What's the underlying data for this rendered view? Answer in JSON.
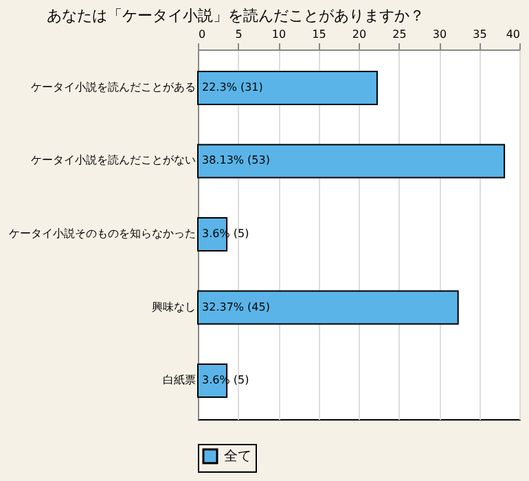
{
  "chart_data": {
    "type": "bar",
    "orientation": "horizontal",
    "title": "あなたは「ケータイ小説」を読んだことがありますか？",
    "categories": [
      "ケータイ小説を読んだことがある",
      "ケータイ小説を読んだことがない",
      "ケータイ小説そのものを知らなかった",
      "興味なし",
      "白紙票"
    ],
    "series": [
      {
        "name": "全て",
        "color": "#5ab4e8",
        "values": [
          22.3,
          38.13,
          3.6,
          32.37,
          3.6
        ],
        "value_labels": [
          "22.3% (31)",
          "38.13% (53)",
          "3.6% (5)",
          "32.37% (45)",
          "3.6% (5)"
        ]
      }
    ],
    "xlim": [
      0,
      40
    ],
    "xticks": [
      0,
      5,
      10,
      15,
      20,
      25,
      30,
      35,
      40
    ],
    "grid": "x",
    "legend": "bottom left"
  }
}
